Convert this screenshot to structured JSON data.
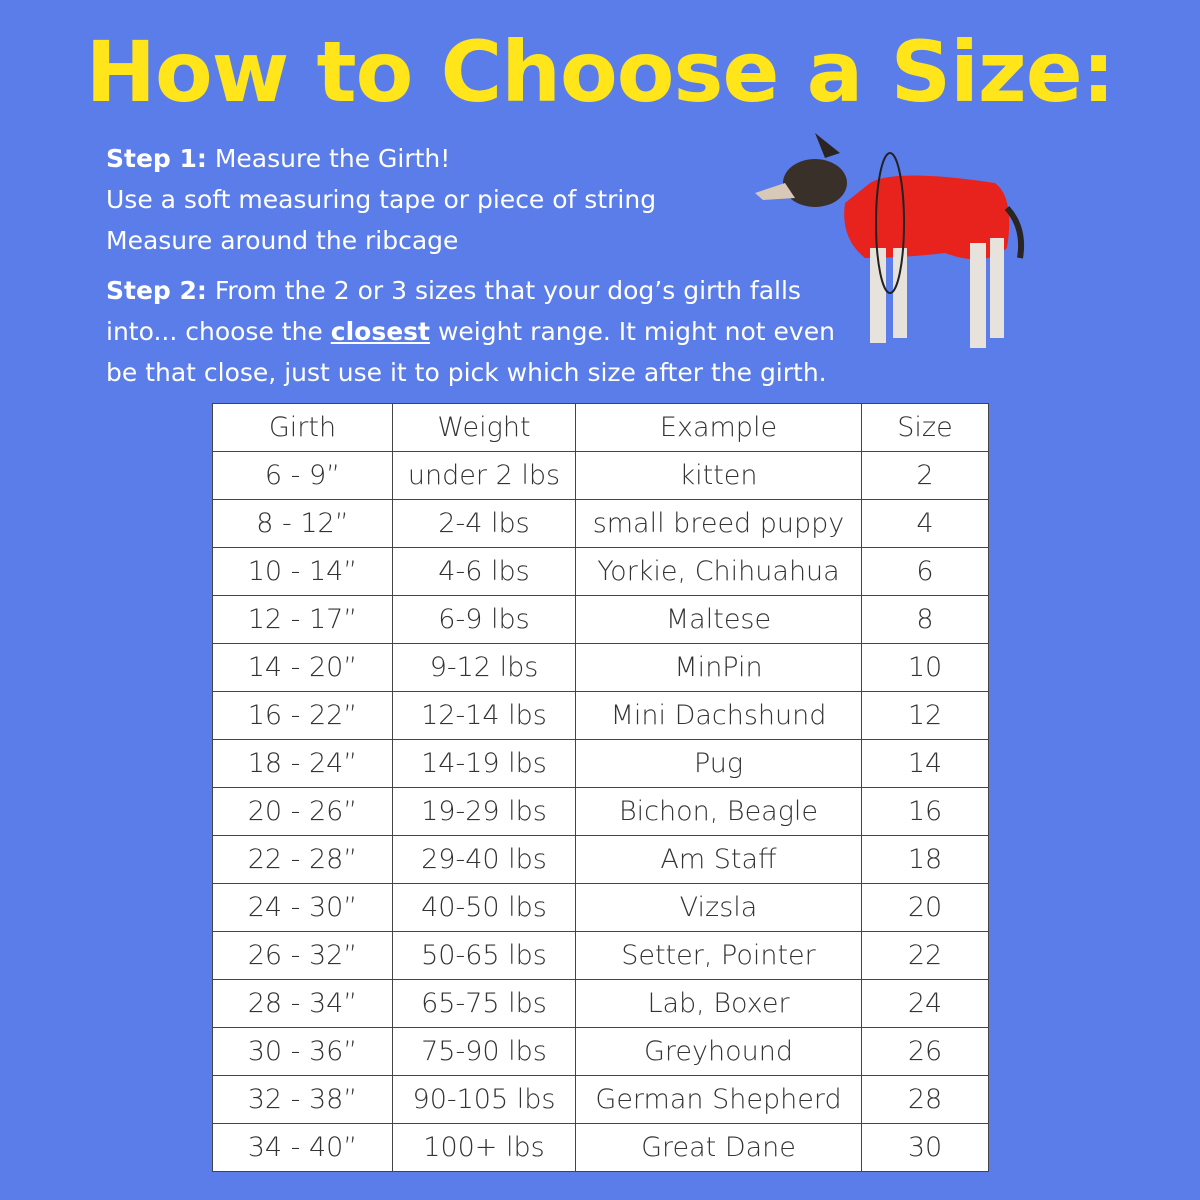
{
  "header": {
    "title": "How to Choose a Size:"
  },
  "steps": [
    {
      "label": "Step 1:",
      "lines": [
        "Measure the Girth!",
        "Use a soft measuring tape or piece of string",
        "Measure around the ribcage"
      ]
    },
    {
      "label": "Step 2:",
      "parts": [
        "From the 2 or 3 sizes that your dog’s girth falls into... choose the",
        "closest",
        "weight range. It might not even be that close, just use it to pick which size after the girth."
      ]
    }
  ],
  "table": {
    "columns": [
      "Girth",
      "Weight",
      "Example",
      "Size"
    ],
    "rows": [
      [
        "6 - 9”",
        "under 2 lbs",
        "kitten",
        2
      ],
      [
        "8 - 12”",
        "2-4 lbs",
        "small breed puppy",
        4
      ],
      [
        "10 - 14”",
        "4-6 lbs",
        "Yorkie, Chihuahua",
        6
      ],
      [
        "12 - 17”",
        "6-9 lbs",
        "Maltese",
        8
      ],
      [
        "14 - 20”",
        "9-12 lbs",
        "MinPin",
        10
      ],
      [
        "16 - 22”",
        "12-14 lbs",
        "Mini Dachshund",
        12
      ],
      [
        "18 - 24”",
        "14-19 lbs",
        "Pug",
        14
      ],
      [
        "20 - 26”",
        "19-29 lbs",
        "Bichon, Beagle",
        16
      ],
      [
        "22 - 28”",
        "29-40 lbs",
        "Am Staff",
        18
      ],
      [
        "24 - 30”",
        "40-50 lbs",
        "Vizsla",
        20
      ],
      [
        "26 - 32”",
        "50-65 lbs",
        "Setter, Pointer",
        22
      ],
      [
        "28 - 34”",
        "65-75 lbs",
        "Lab, Boxer",
        24
      ],
      [
        "30 - 36”",
        "75-90 lbs",
        "Greyhound",
        26
      ],
      [
        "32 - 38”",
        "90-105 lbs",
        "German Shepherd",
        28
      ],
      [
        "34 - 40”",
        "100+ lbs",
        "Great Dane",
        30
      ]
    ]
  }
}
